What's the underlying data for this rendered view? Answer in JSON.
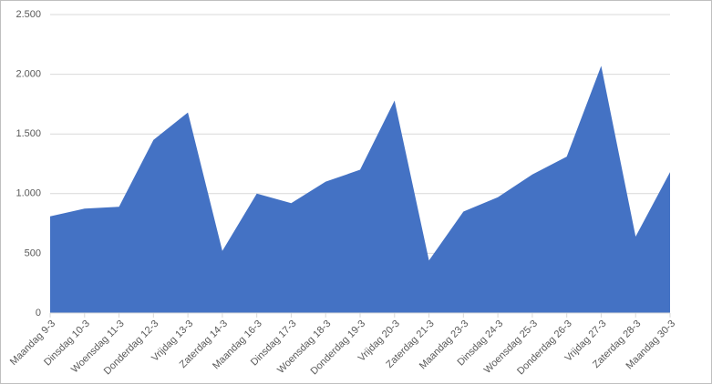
{
  "chart_data": {
    "type": "area",
    "categories": [
      "Maandag 9-3",
      "Dinsdag 10-3",
      "Woensdag 11-3",
      "Donderdag 12-3",
      "Vrijdag 13-3",
      "Zaterdag 14-3",
      "Maandag 16-3",
      "Dinsdag 17-3",
      "Woensdag 18-3",
      "Donderdag 19-3",
      "Vrijdag 20-3",
      "Zaterdag 21-3",
      "Maandag 23-3",
      "Dinsdag 24-3",
      "Woensdag 25-3",
      "Donderdag 26-3",
      "Vrijdag 27-3",
      "Zaterdag 28-3",
      "Maandag 30-3"
    ],
    "values": [
      810,
      875,
      890,
      1450,
      1680,
      520,
      1000,
      920,
      1100,
      1200,
      1780,
      440,
      850,
      970,
      1160,
      1310,
      2070,
      640,
      1180
    ],
    "color": "#4472c4",
    "ylim": [
      0,
      2500
    ],
    "yticks": [
      0,
      500,
      {
        "value": 1000,
        "label": "1.000"
      },
      {
        "value": 1500,
        "label": "1.500"
      },
      {
        "value": 2000,
        "label": "2.000"
      },
      {
        "value": 2500,
        "label": "2.500"
      }
    ],
    "grid": true
  }
}
